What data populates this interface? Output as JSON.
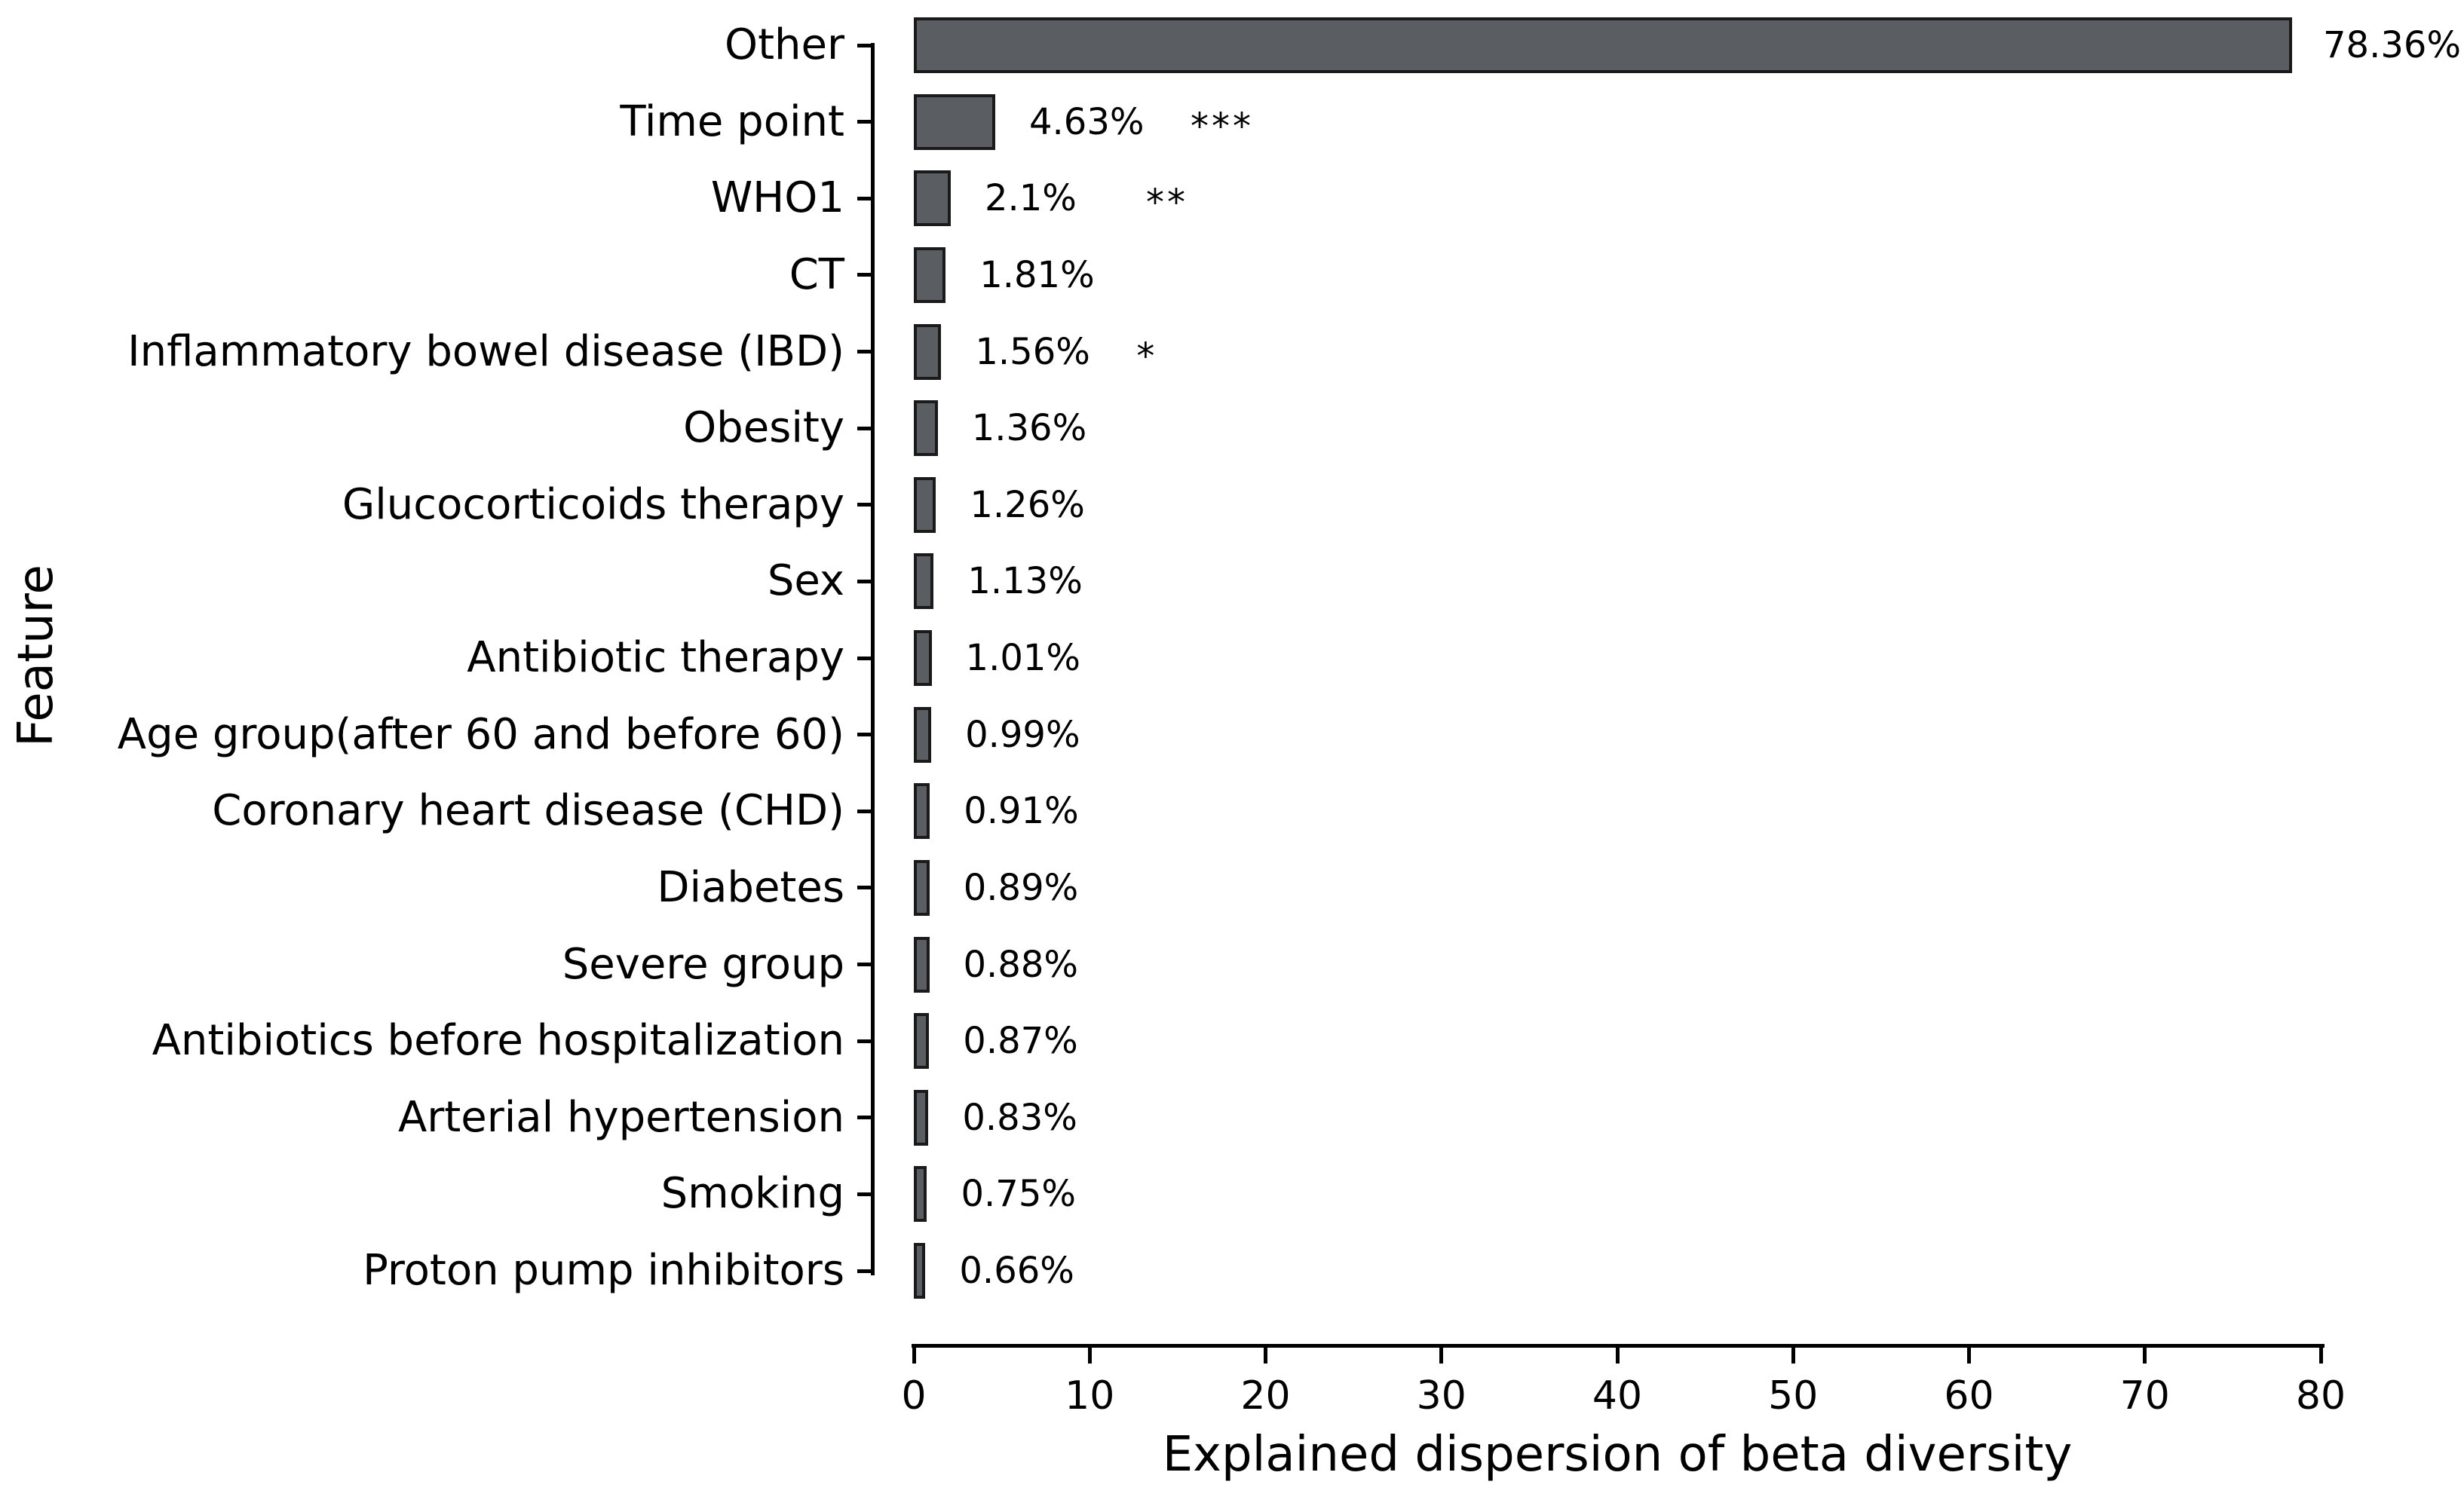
{
  "figure": {
    "background": "#ffffff",
    "bar_fill": "#5a5d61",
    "bar_edge": "#1a1a1a",
    "axis_color": "#000000",
    "text_color": "#000000"
  },
  "chart_data": {
    "type": "bar",
    "orientation": "horizontal",
    "xlabel": "Explained dispersion of beta diversity",
    "ylabel": "Feature",
    "xlim": [
      0,
      80
    ],
    "xticks": [
      0,
      10,
      20,
      30,
      40,
      50,
      60,
      70,
      80
    ],
    "grid": false,
    "legend": null,
    "categories": [
      "Other",
      "Time point",
      "WHO1",
      "CT",
      "Inflammatory bowel disease (IBD)",
      "Obesity",
      "Glucocorticoids therapy",
      "Sex",
      "Antibiotic therapy",
      "Age group(after 60 and before 60)",
      "Coronary heart disease (CHD)",
      "Diabetes",
      "Severe group",
      "Antibiotics before hospitalization",
      "Arterial hypertension",
      "Smoking",
      "Proton pump inhibitors"
    ],
    "values": [
      78.36,
      4.63,
      2.1,
      1.81,
      1.56,
      1.36,
      1.26,
      1.13,
      1.01,
      0.99,
      0.91,
      0.89,
      0.88,
      0.87,
      0.83,
      0.75,
      0.66
    ],
    "value_labels": [
      "78.36%",
      "4.63%",
      "2.1%",
      "1.81%",
      "1.56%",
      "1.36%",
      "1.26%",
      "1.13%",
      "1.01%",
      "0.99%",
      "0.91%",
      "0.89%",
      "0.88%",
      "0.87%",
      "0.83%",
      "0.75%",
      "0.66%"
    ],
    "significance": [
      "",
      "***",
      "**",
      "",
      "*",
      "",
      "",
      "",
      "",
      "",
      "",
      "",
      "",
      "",
      "",
      "",
      ""
    ]
  }
}
